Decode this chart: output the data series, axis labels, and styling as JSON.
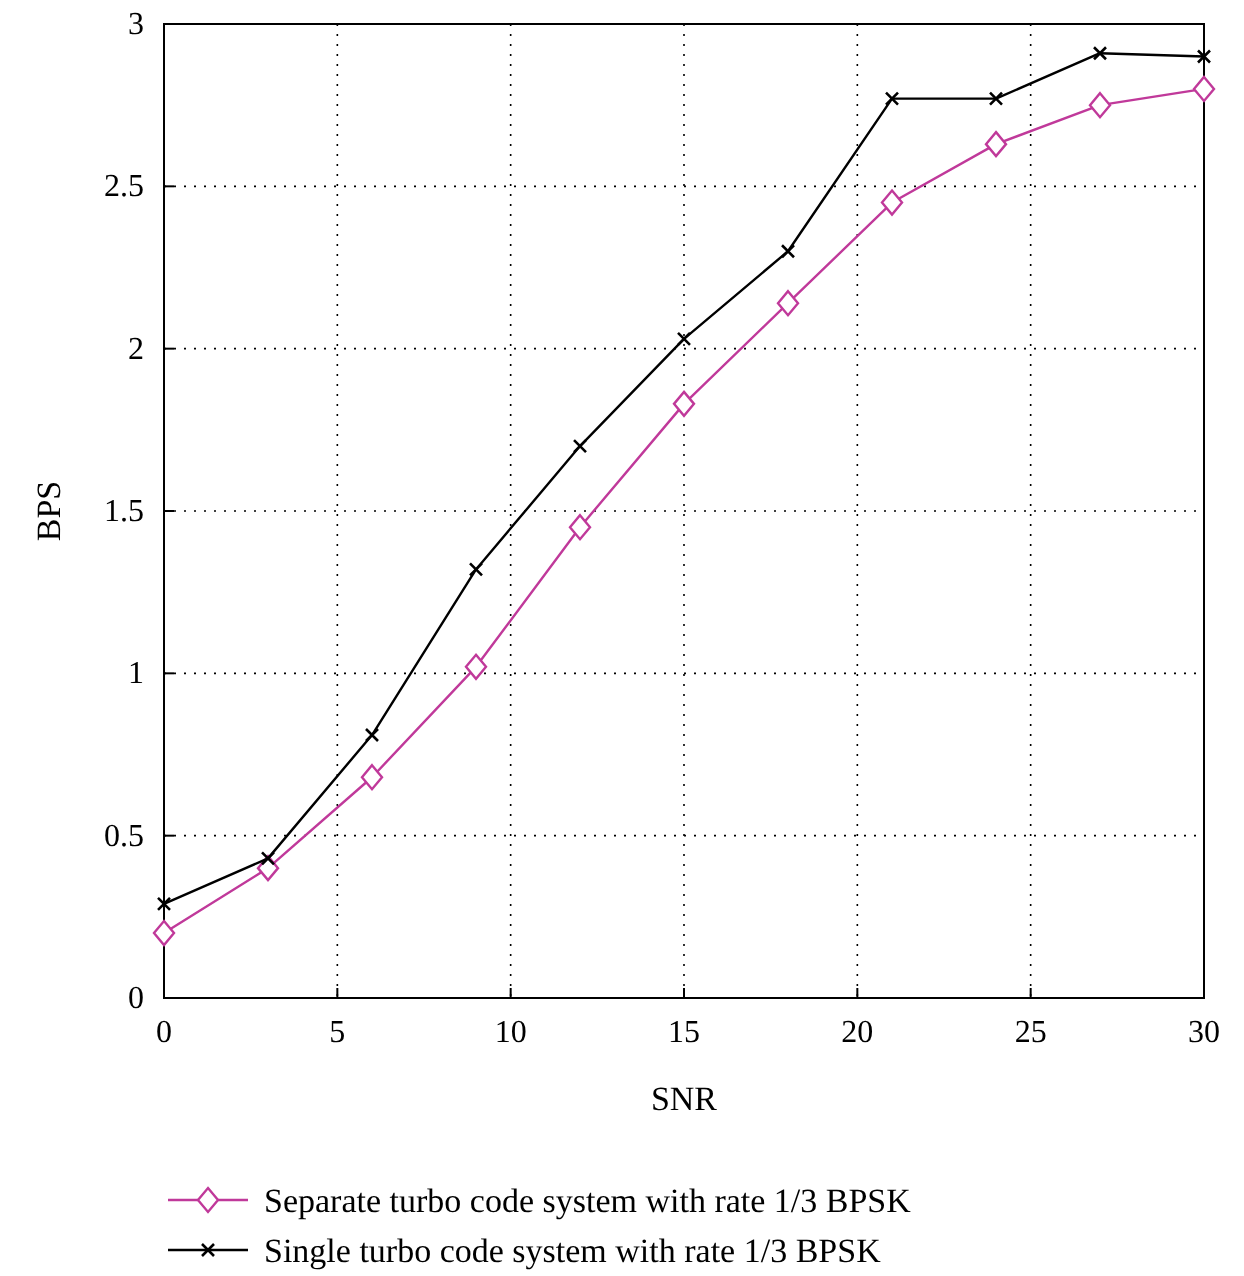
{
  "chart_data": {
    "type": "line",
    "xlabel": "SNR",
    "ylabel": "BPS",
    "x": [
      0,
      3,
      6,
      9,
      12,
      15,
      18,
      21,
      24,
      27,
      30
    ],
    "series": [
      {
        "name": "Separate turbo code system with rate 1/3 BPSK",
        "color": "#c0399a",
        "marker": "diamond",
        "values": [
          0.2,
          0.4,
          0.68,
          1.02,
          1.45,
          1.83,
          2.14,
          2.45,
          2.63,
          2.75,
          2.8
        ]
      },
      {
        "name": "Single turbo code system with rate 1/3 BPSK",
        "color": "#000000",
        "marker": "cross",
        "values": [
          0.29,
          0.43,
          0.81,
          1.32,
          1.7,
          2.03,
          2.3,
          2.77,
          2.77,
          2.91,
          2.9
        ]
      }
    ],
    "xlim": [
      0,
      30
    ],
    "xticks": [
      0,
      5,
      10,
      15,
      20,
      25,
      30
    ],
    "ylim": [
      0,
      3
    ],
    "yticks": [
      0,
      0.5,
      1,
      1.5,
      2,
      2.5,
      3
    ],
    "grid": true,
    "legend": "bottom",
    "line_style": "solid"
  }
}
